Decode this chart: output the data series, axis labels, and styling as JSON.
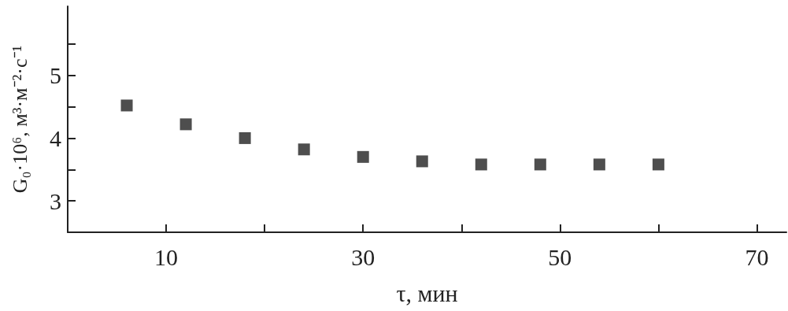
{
  "chart_data": {
    "type": "scatter",
    "xlabel": "τ, мин",
    "ylabel": "G₀·10⁶, м³·м⁻²·с⁻¹",
    "x": [
      6,
      12,
      18,
      24,
      30,
      36,
      42,
      48,
      54,
      60
    ],
    "values": [
      4.52,
      4.22,
      4.0,
      3.82,
      3.7,
      3.63,
      3.58,
      3.58,
      3.58,
      3.58
    ],
    "color": "#222222",
    "marker": "square",
    "xlim": [
      0,
      73
    ],
    "xticks": [
      10,
      {
        "value": 20,
        "label": null
      },
      30,
      {
        "value": 40,
        "label": null
      },
      50,
      {
        "value": 60,
        "label": null
      },
      70
    ],
    "ylim": [
      2.5,
      6.1
    ],
    "yticks": [
      3,
      {
        "value": 3.5,
        "label": null
      },
      4,
      {
        "value": 4.5,
        "label": null
      },
      5,
      {
        "value": 5.5,
        "label": null
      }
    ]
  }
}
